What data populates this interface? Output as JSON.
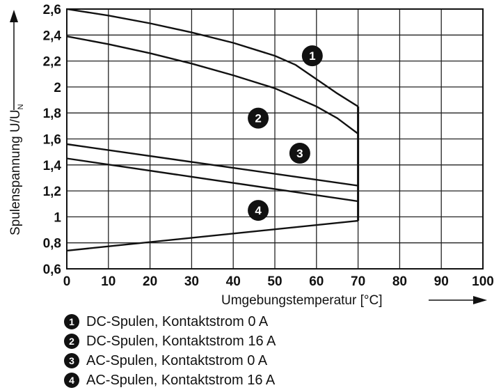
{
  "chart_data": {
    "type": "line",
    "xlabel": "Umgebungstemperatur [°C]",
    "ylabel_main": "Spulenspannung U/U",
    "ylabel_sub": "N",
    "xlim": [
      0,
      100
    ],
    "ylim": [
      0.6,
      2.6
    ],
    "x_ticks": [
      "0",
      "10",
      "20",
      "30",
      "40",
      "50",
      "60",
      "70",
      "80",
      "90",
      "100"
    ],
    "y_ticks": [
      "0,6",
      "0,8",
      "1",
      "1,2",
      "1,4",
      "1,6",
      "1,8",
      "2",
      "2,2",
      "2,4",
      "2,6"
    ],
    "grid": true,
    "series": [
      {
        "name": "DC-Spulen, Kontaktstrom 0 A",
        "marker": "1",
        "points": [
          [
            0,
            2.6
          ],
          [
            10,
            2.55
          ],
          [
            20,
            2.49
          ],
          [
            30,
            2.42
          ],
          [
            40,
            2.34
          ],
          [
            50,
            2.24
          ],
          [
            55,
            2.17
          ],
          [
            60,
            2.06
          ],
          [
            65,
            1.95
          ],
          [
            70,
            1.85
          ]
        ]
      },
      {
        "name": "DC-Spulen, Kontaktstrom 16 A",
        "marker": "2",
        "points": [
          [
            0,
            2.39
          ],
          [
            10,
            2.33
          ],
          [
            20,
            2.26
          ],
          [
            30,
            2.18
          ],
          [
            40,
            2.09
          ],
          [
            50,
            1.99
          ],
          [
            60,
            1.85
          ],
          [
            65,
            1.76
          ],
          [
            70,
            1.64
          ]
        ]
      },
      {
        "name": "AC-Spulen, Kontaktstrom 0 A",
        "marker": "3",
        "points": [
          [
            0,
            1.56
          ],
          [
            70,
            1.24
          ]
        ]
      },
      {
        "name": "AC-Spulen, Kontaktstrom 16 A",
        "marker": "4",
        "points": [
          [
            0,
            1.45
          ],
          [
            70,
            1.12
          ]
        ]
      }
    ],
    "lower_boundary": [
      [
        0,
        0.74
      ],
      [
        70,
        0.97
      ]
    ],
    "vertical_cutoff": {
      "x": 70,
      "y_from": 0.97,
      "y_to": 1.85
    },
    "markers": [
      {
        "label": "1",
        "x": 59,
        "y": 2.24
      },
      {
        "label": "2",
        "x": 46,
        "y": 1.76
      },
      {
        "label": "3",
        "x": 56,
        "y": 1.49
      },
      {
        "label": "4",
        "x": 46,
        "y": 1.05
      }
    ]
  },
  "legend": [
    {
      "badge": "1",
      "text": "DC-Spulen, Kontaktstrom 0 A"
    },
    {
      "badge": "2",
      "text": "DC-Spulen, Kontaktstrom 16 A"
    },
    {
      "badge": "3",
      "text": "AC-Spulen, Kontaktstrom 0 A"
    },
    {
      "badge": "4",
      "text": "AC-Spulen, Kontaktstrom 16 A"
    }
  ]
}
